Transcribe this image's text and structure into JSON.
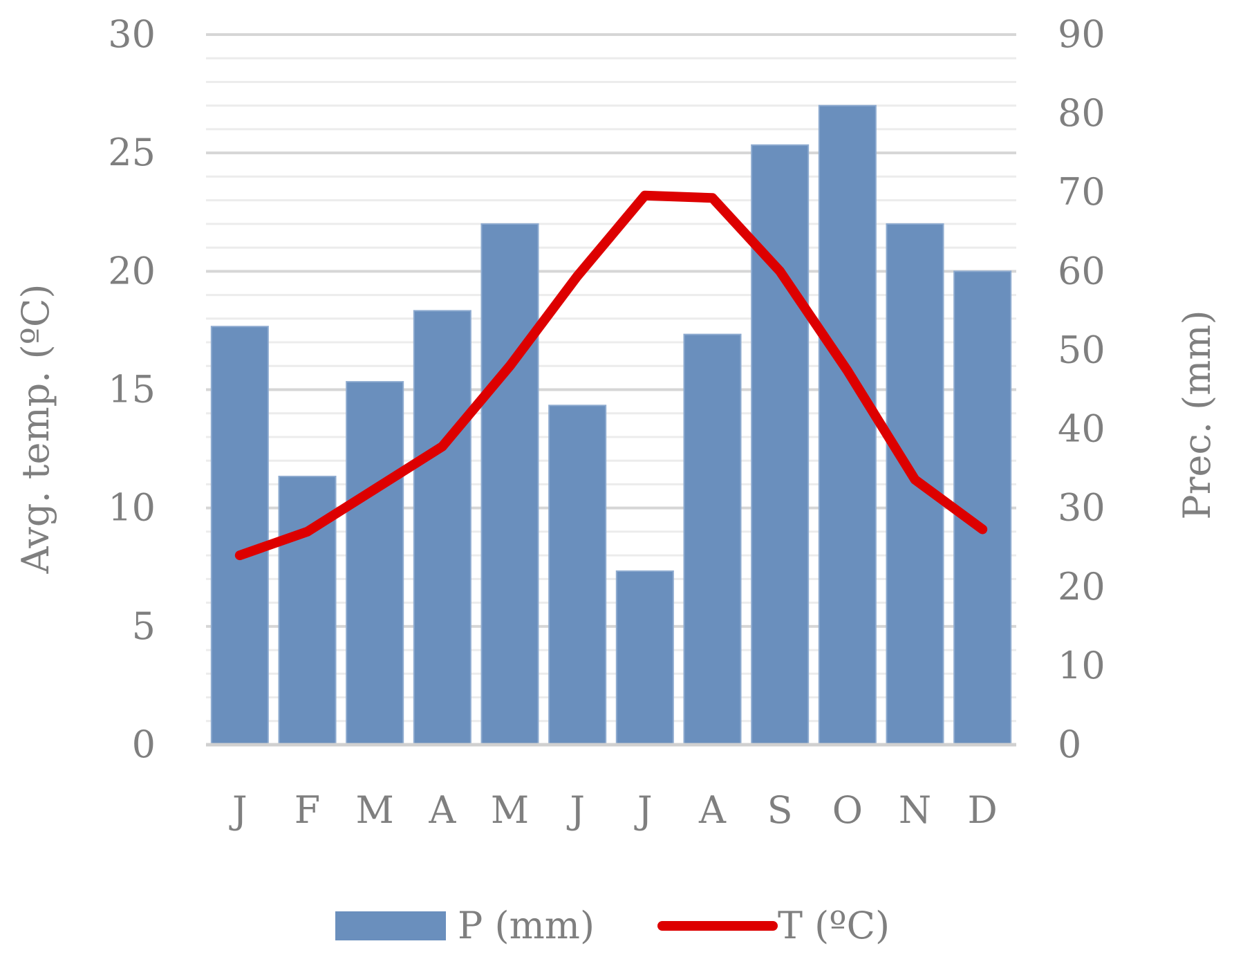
{
  "chart_data": {
    "type": "bar",
    "categories": [
      "J",
      "F",
      "M",
      "A",
      "M",
      "J",
      "J",
      "A",
      "S",
      "O",
      "N",
      "D"
    ],
    "series": [
      {
        "name": "P (mm)",
        "type": "bar",
        "axis": "right",
        "color": "#6a8fbd",
        "values": [
          53,
          34,
          46,
          55,
          66,
          43,
          22,
          52,
          76,
          81,
          66,
          60
        ]
      },
      {
        "name": "T (ºC)",
        "type": "line",
        "axis": "left",
        "color": "#dd0000",
        "values": [
          8.0,
          9.0,
          10.8,
          12.6,
          16.0,
          19.8,
          23.2,
          23.1,
          20.0,
          15.8,
          11.2,
          9.1
        ]
      }
    ],
    "ylabel": "Avg. temp. (ºC)",
    "y2label": "Prec. (mm)",
    "ylim": [
      0,
      30
    ],
    "y2lim": [
      0,
      90
    ],
    "yticks": [
      "0",
      "5",
      "10",
      "15",
      "20",
      "25",
      "30"
    ],
    "y2ticks": [
      "0",
      "10",
      "20",
      "30",
      "40",
      "50",
      "60",
      "70",
      "80",
      "90"
    ],
    "grid": true,
    "legend_position": "bottom"
  }
}
